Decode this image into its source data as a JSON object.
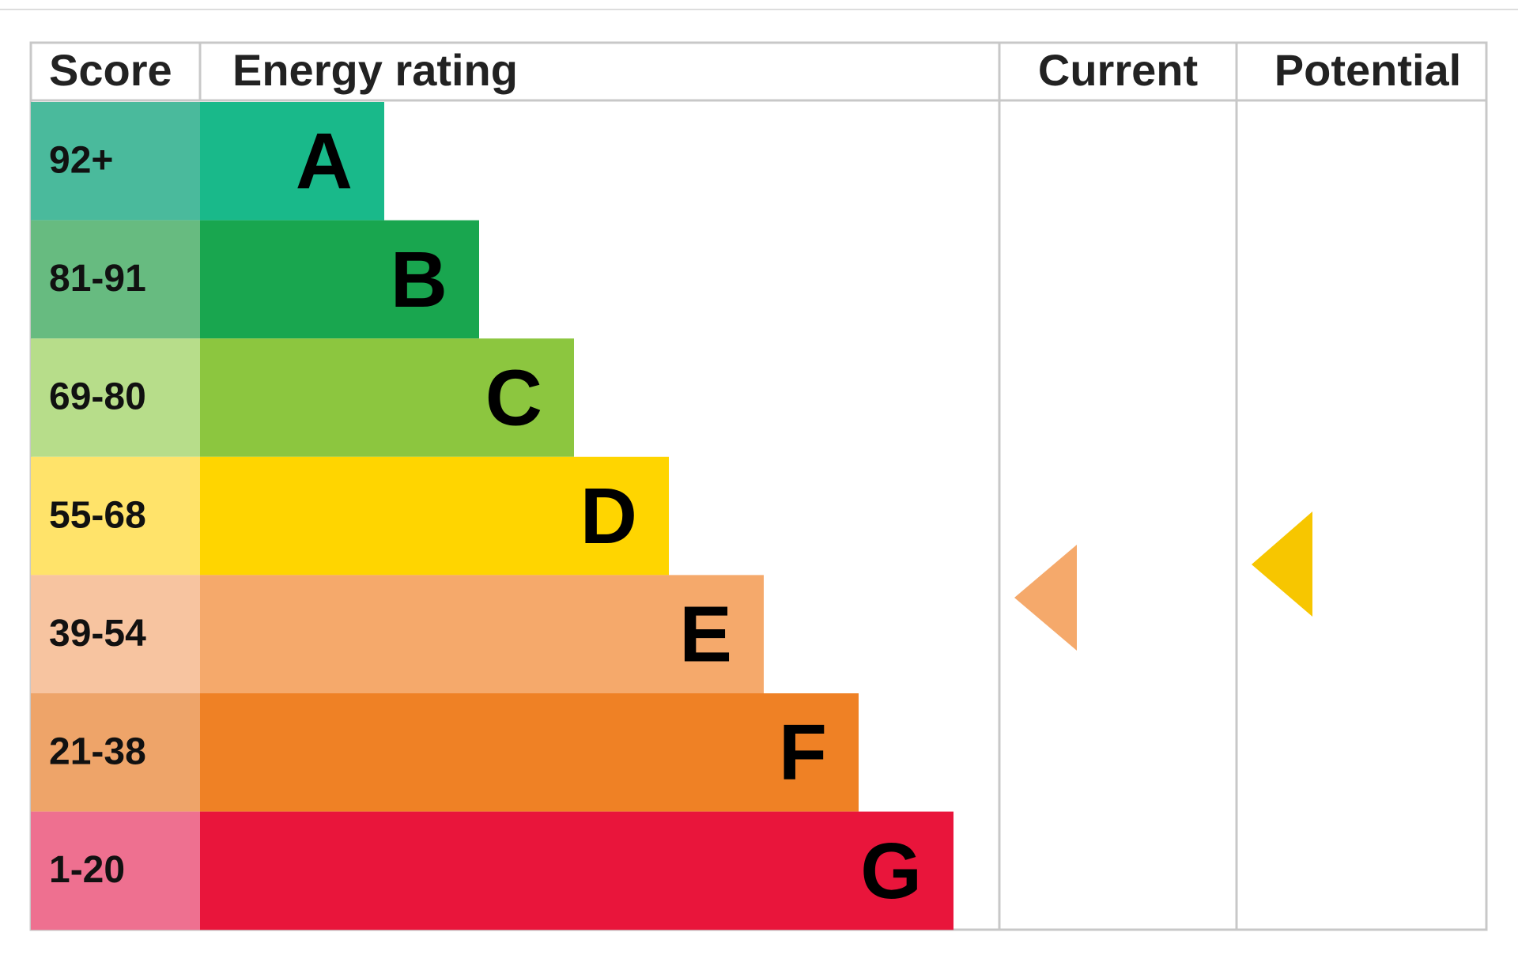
{
  "header": {
    "score": "Score",
    "energy_rating": "Energy rating",
    "current": "Current",
    "potential": "Potential"
  },
  "bands": [
    {
      "score": "92+",
      "letter": "A"
    },
    {
      "score": "81-91",
      "letter": "B"
    },
    {
      "score": "69-80",
      "letter": "C"
    },
    {
      "score": "55-68",
      "letter": "D"
    },
    {
      "score": "39-54",
      "letter": "E"
    },
    {
      "score": "21-38",
      "letter": "F"
    },
    {
      "score": "1-20",
      "letter": "G"
    }
  ]
}
